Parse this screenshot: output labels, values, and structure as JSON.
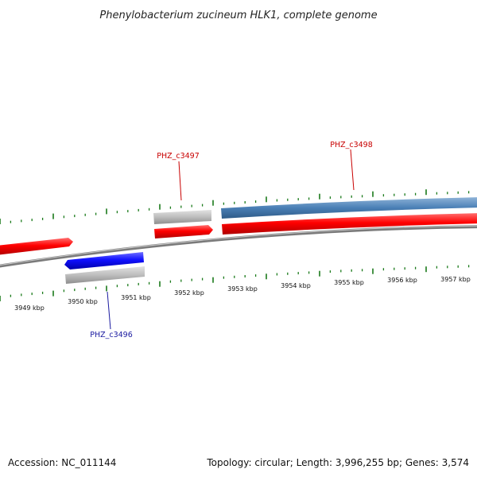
{
  "title": "Phenylobacterium zucineum HLK1, complete genome",
  "footer": {
    "accession": "Accession: NC_011144",
    "summary": "Topology: circular; Length: 3,996,255 bp; Genes: 3,574"
  },
  "ticks": [
    "3949 kbp",
    "3950 kbp",
    "3951 kbp",
    "3952 kbp",
    "3953 kbp",
    "3954 kbp",
    "3955 kbp",
    "3956 kbp",
    "3957 kbp"
  ],
  "genes": [
    {
      "label": "PHZ_c3496",
      "color": "#1a1aa0"
    },
    {
      "label": "PHZ_c3497",
      "color": "#c80000"
    },
    {
      "label": "PHZ_c3498",
      "color": "#c80000"
    }
  ],
  "colors": {
    "forward_cds": "#e60000",
    "reverse_cds": "#0000ee",
    "rna_feature": "#4a7fb5",
    "gene_shadow": "#b8b8b8",
    "backbone": "#7a7a7a",
    "ticks": "#1a7a1a"
  }
}
